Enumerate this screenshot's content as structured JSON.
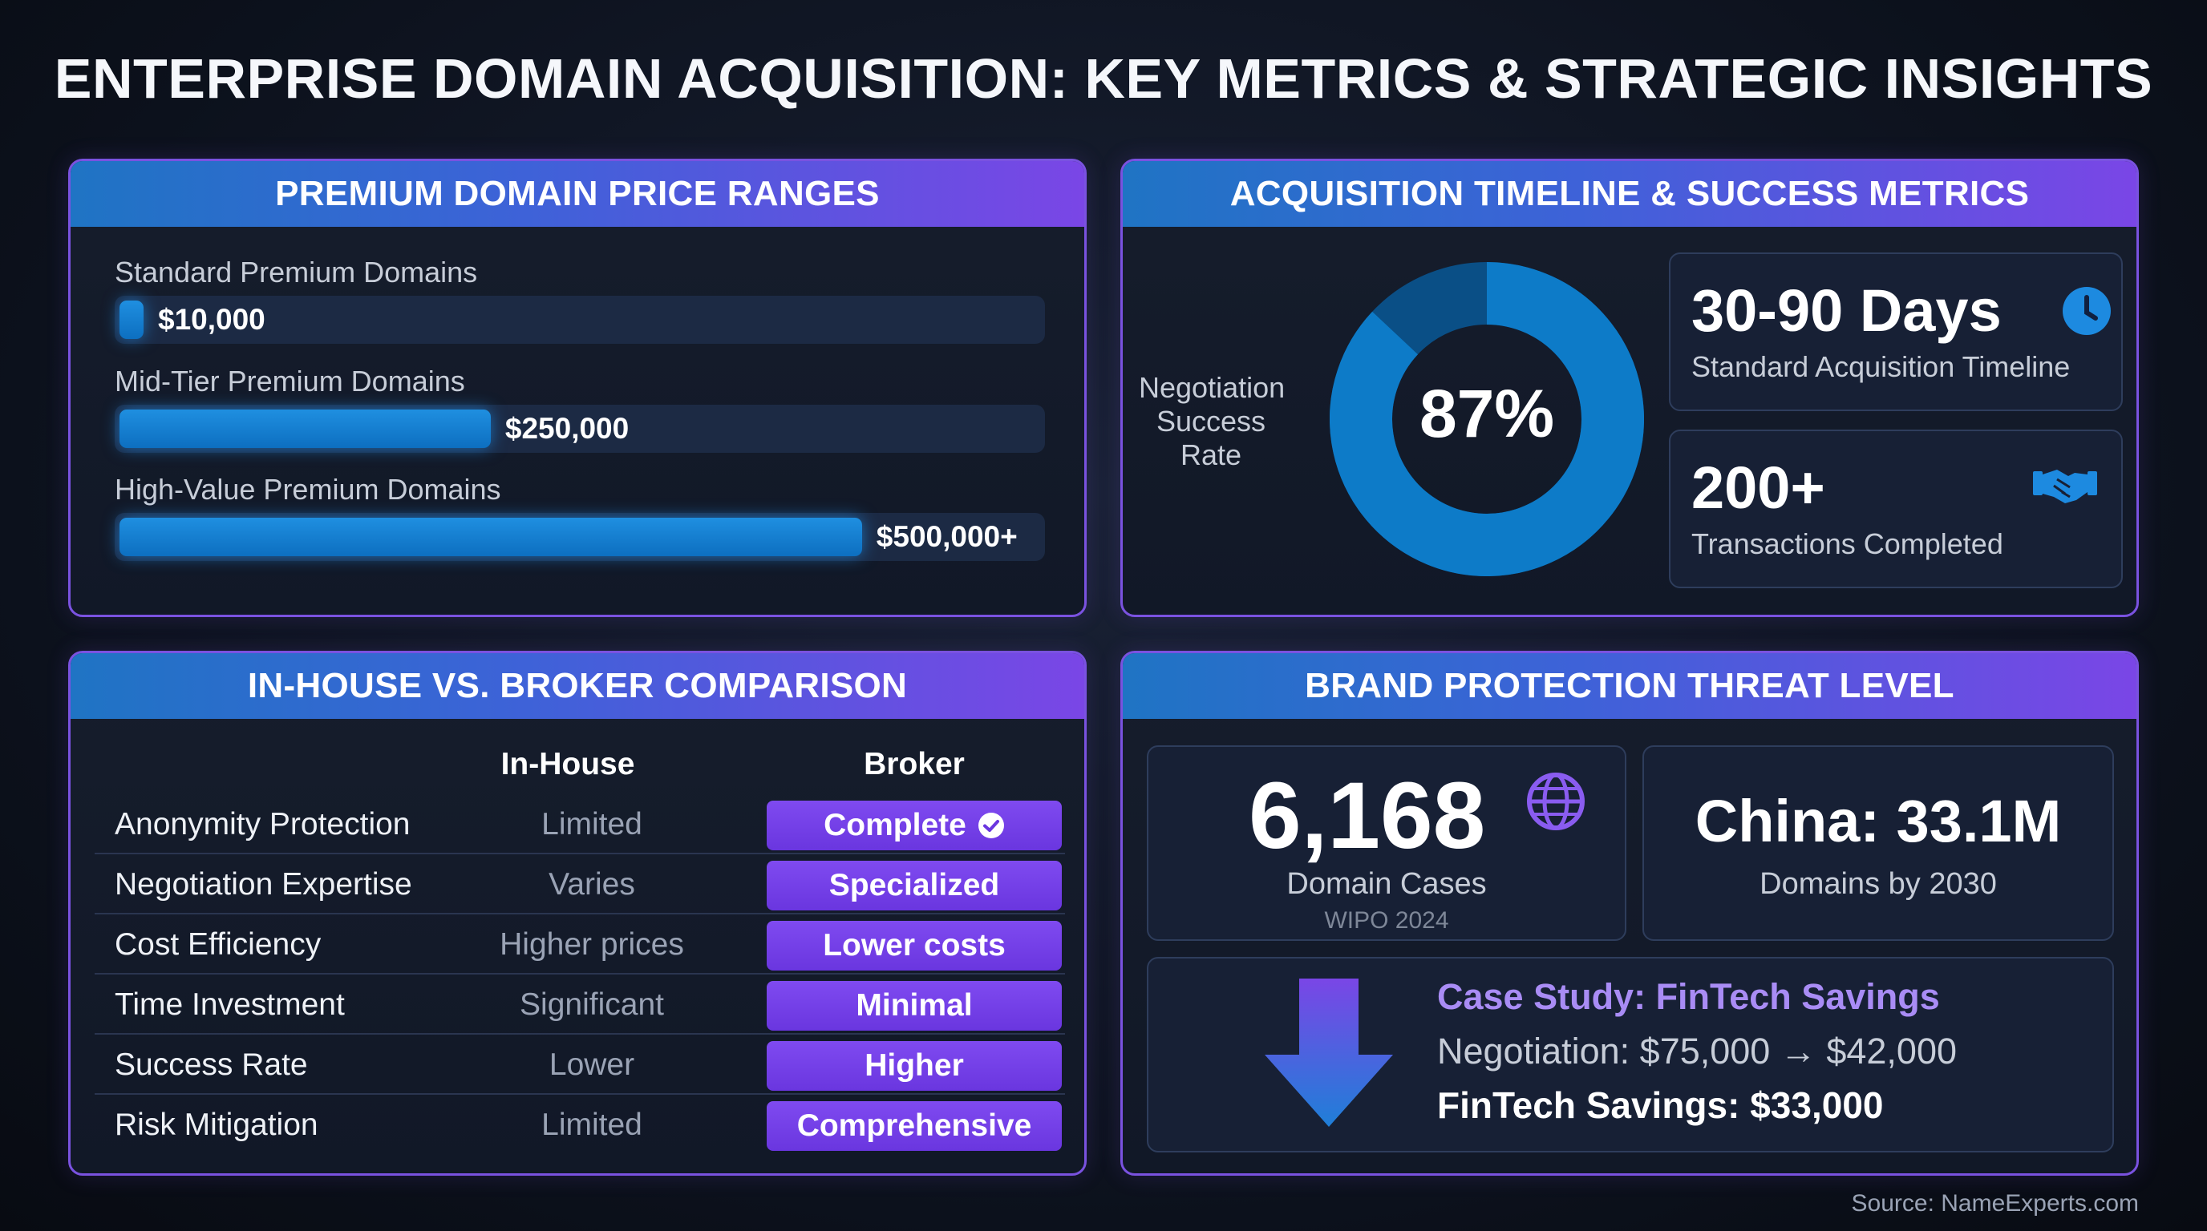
{
  "title": "ENTERPRISE DOMAIN ACQUISITION: KEY METRICS & STRATEGIC INSIGHTS",
  "price_ranges": {
    "header": "PREMIUM DOMAIN PRICE RANGES",
    "tiers": [
      {
        "label": "Standard Premium Domains",
        "value_text": "$10,000"
      },
      {
        "label": "Mid-Tier Premium Domains",
        "value_text": "$250,000"
      },
      {
        "label": "High-Value Premium Domains",
        "value_text": "$500,000+"
      }
    ]
  },
  "timeline": {
    "header": "ACQUISITION TIMELINE & SUCCESS METRICS",
    "rate_label": "Negotiation Success Rate",
    "rate_text": "87%",
    "cards": [
      {
        "big": "30-90 Days",
        "sub": "Standard Acquisition Timeline",
        "icon": "clock-icon"
      },
      {
        "big": "200+",
        "sub": "Transactions Completed",
        "icon": "handshake-icon"
      }
    ]
  },
  "comparison": {
    "header": "IN-HOUSE VS. BROKER COMPARISON",
    "col_inhouse": "In-House",
    "col_broker": "Broker",
    "rows": [
      {
        "label": "Anonymity Protection",
        "inhouse": "Limited",
        "broker": "Complete"
      },
      {
        "label": "Negotiation Expertise",
        "inhouse": "Varies",
        "broker": "Specialized"
      },
      {
        "label": "Cost Efficiency",
        "inhouse": "Higher prices",
        "broker": "Lower costs"
      },
      {
        "label": "Time Investment",
        "inhouse": "Significant",
        "broker": "Minimal"
      },
      {
        "label": "Success Rate",
        "inhouse": "Lower",
        "broker": "Higher"
      },
      {
        "label": "Risk Mitigation",
        "inhouse": "Limited",
        "broker": "Comprehensive"
      }
    ]
  },
  "threat": {
    "header": "BRAND PROTECTION THREAT LEVEL",
    "cases_num": "6,168",
    "cases_sub": "Domain Cases",
    "cases_src": "WIPO 2024",
    "china_big": "China: 33.1M",
    "china_sub": "Domains by 2030",
    "case_study_title": "Case Study: FinTech Savings",
    "case_study_line": "Negotiation: $75,000 → $42,000",
    "case_study_savings": "FinTech Savings: $33,000"
  },
  "source": "Source: NameExperts.com",
  "colors": {
    "accent_blue": "#1f8fe0",
    "accent_purple": "#7a46e6",
    "donut_dark": "#0a4f86"
  },
  "chart_data": [
    {
      "type": "bar",
      "orientation": "horizontal",
      "title": "PREMIUM DOMAIN PRICE RANGES",
      "categories": [
        "Standard Premium Domains",
        "Mid-Tier Premium Domains",
        "High-Value Premium Domains"
      ],
      "values": [
        10000,
        250000,
        500000
      ],
      "value_labels": [
        "$10,000",
        "$250,000",
        "$500,000+"
      ],
      "xlim": [
        0,
        620000
      ],
      "grid": false
    },
    {
      "type": "pie",
      "style": "donut",
      "title": "Negotiation Success Rate",
      "values": [
        87,
        13
      ],
      "center_label": "87%"
    }
  ]
}
